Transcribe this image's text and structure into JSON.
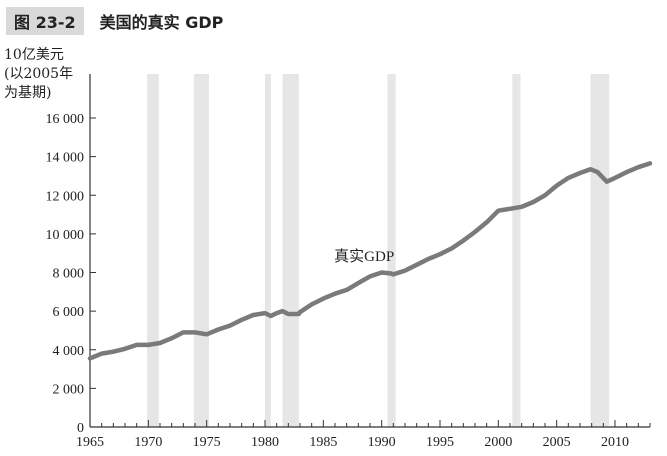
{
  "figure": {
    "number": "图 23-2",
    "title": "美国的真实 GDP"
  },
  "chart_data": {
    "type": "line",
    "title": "美国的真实 GDP",
    "ylabel": "10亿美元\n(以2005年\n为基期)",
    "xlabel": "",
    "xlim": [
      1965,
      2013
    ],
    "ylim": [
      0,
      16000
    ],
    "yticks": [
      {
        "value": 0,
        "label": "0"
      },
      {
        "value": 2000,
        "label": "2 000"
      },
      {
        "value": 4000,
        "label": "4 000"
      },
      {
        "value": 6000,
        "label": "6 000"
      },
      {
        "value": 8000,
        "label": "8 000"
      },
      {
        "value": 10000,
        "label": "10 000"
      },
      {
        "value": 12000,
        "label": "12 000"
      },
      {
        "value": 14000,
        "label": "14 000"
      },
      {
        "value": 16000,
        "label": "16 000"
      }
    ],
    "xticks": [
      {
        "value": 1965,
        "label": "1965"
      },
      {
        "value": 1970,
        "label": "1970"
      },
      {
        "value": 1975,
        "label": "1975"
      },
      {
        "value": 1980,
        "label": "1980"
      },
      {
        "value": 1985,
        "label": "1985"
      },
      {
        "value": 1990,
        "label": "1990"
      },
      {
        "value": 1995,
        "label": "1995"
      },
      {
        "value": 2000,
        "label": "2000"
      },
      {
        "value": 2005,
        "label": "2005"
      },
      {
        "value": 2010,
        "label": "2010"
      }
    ],
    "grid": false,
    "recessions": [
      [
        1969.9,
        1970.9
      ],
      [
        1973.9,
        1975.2
      ],
      [
        1980.0,
        1980.5
      ],
      [
        1981.5,
        1982.9
      ],
      [
        1990.5,
        1991.2
      ],
      [
        2001.2,
        2001.9
      ],
      [
        2007.9,
        2009.5
      ]
    ],
    "series": [
      {
        "name": "真实GDP",
        "color": "#7a7a7a",
        "points": [
          [
            1965,
            3550
          ],
          [
            1966,
            3800
          ],
          [
            1967,
            3900
          ],
          [
            1968,
            4050
          ],
          [
            1969,
            4250
          ],
          [
            1970,
            4250
          ],
          [
            1971,
            4350
          ],
          [
            1972,
            4600
          ],
          [
            1973,
            4900
          ],
          [
            1974,
            4900
          ],
          [
            1975,
            4800
          ],
          [
            1976,
            5050
          ],
          [
            1977,
            5250
          ],
          [
            1978,
            5550
          ],
          [
            1979,
            5800
          ],
          [
            1980,
            5900
          ],
          [
            1980.5,
            5750
          ],
          [
            1981,
            5900
          ],
          [
            1981.5,
            6000
          ],
          [
            1982,
            5850
          ],
          [
            1982.9,
            5850
          ],
          [
            1983,
            5950
          ],
          [
            1984,
            6350
          ],
          [
            1985,
            6650
          ],
          [
            1986,
            6900
          ],
          [
            1987,
            7100
          ],
          [
            1988,
            7450
          ],
          [
            1989,
            7800
          ],
          [
            1990,
            8000
          ],
          [
            1990.8,
            7950
          ],
          [
            1991,
            7900
          ],
          [
            1992,
            8100
          ],
          [
            1993,
            8400
          ],
          [
            1994,
            8700
          ],
          [
            1995,
            8950
          ],
          [
            1996,
            9250
          ],
          [
            1997,
            9650
          ],
          [
            1998,
            10100
          ],
          [
            1999,
            10600
          ],
          [
            2000,
            11200
          ],
          [
            2001,
            11300
          ],
          [
            2002,
            11400
          ],
          [
            2003,
            11650
          ],
          [
            2004,
            12000
          ],
          [
            2005,
            12500
          ],
          [
            2006,
            12900
          ],
          [
            2007,
            13150
          ],
          [
            2007.9,
            13350
          ],
          [
            2008.5,
            13200
          ],
          [
            2009.3,
            12700
          ],
          [
            2010,
            12900
          ],
          [
            2011,
            13200
          ],
          [
            2012,
            13450
          ],
          [
            2013,
            13650
          ]
        ]
      }
    ],
    "annotations": [
      {
        "text": "真实GDP",
        "x": 1988.5,
        "y": 8600
      }
    ]
  }
}
